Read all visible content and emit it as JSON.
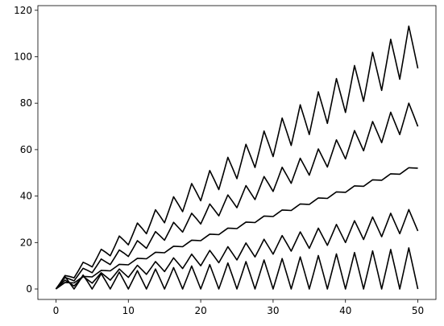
{
  "chart_data": {
    "type": "line",
    "x": [
      0,
      0.625,
      1.25,
      1.875,
      2.5,
      3.125,
      3.75,
      4.375,
      5,
      5.625,
      6.25,
      6.875,
      7.5,
      8.125,
      8.75,
      9.375,
      10,
      10.625,
      11.25,
      11.875,
      12.5,
      13.125,
      13.75,
      14.375,
      15,
      15.625,
      16.25,
      16.875,
      17.5,
      18.125,
      18.75,
      19.375,
      20,
      20.625,
      21.25,
      21.875,
      22.5,
      23.125,
      23.75,
      24.375,
      25,
      25.625,
      26.25,
      26.875,
      27.5,
      28.125,
      28.75,
      29.375,
      30,
      30.625,
      31.25,
      31.875,
      32.5,
      33.125,
      33.75,
      34.375,
      35,
      35.625,
      36.25,
      36.875,
      37.5,
      38.125,
      38.75,
      39.375,
      40,
      40.625,
      41.25,
      41.875,
      42.5,
      43.125,
      43.75,
      44.375,
      45,
      45.625,
      46.25,
      46.875,
      47.5,
      48.125,
      48.75,
      49.375,
      50
    ],
    "series": [
      {
        "color": "#000000",
        "values": [
          0,
          2.6,
          5.3,
          2.7,
          0,
          2.9,
          6.0,
          3.1,
          0,
          3.2,
          6.6,
          3.4,
          0,
          3.6,
          7.3,
          3.7,
          0,
          3.9,
          7.9,
          4.0,
          0,
          4.2,
          8.6,
          4.4,
          0,
          4.5,
          9.2,
          4.7,
          0,
          4.9,
          9.9,
          5.0,
          0,
          5.2,
          10.5,
          5.3,
          0,
          5.5,
          11.2,
          5.7,
          0,
          5.8,
          11.8,
          6.0,
          0,
          6.2,
          12.5,
          6.3,
          0,
          6.5,
          13.1,
          6.6,
          0,
          6.8,
          13.8,
          7.0,
          0,
          7.1,
          14.4,
          7.3,
          0,
          7.5,
          15.1,
          7.6,
          0,
          7.8,
          15.7,
          7.9,
          0,
          8.1,
          16.4,
          8.3,
          0,
          8.4,
          17.0,
          8.6,
          0,
          8.8,
          17.7,
          8.9,
          0
        ]
      },
      {
        "color": "#000000",
        "values": [
          0,
          1.9,
          3.8,
          2.6,
          1.3,
          3.3,
          5.4,
          4.0,
          2.5,
          4.7,
          7.0,
          5.4,
          3.8,
          6.1,
          8.6,
          6.8,
          5.0,
          7.6,
          10.2,
          8.3,
          6.3,
          9.0,
          11.8,
          9.7,
          7.5,
          10.4,
          13.4,
          11.1,
          8.8,
          11.8,
          15.0,
          12.5,
          10.0,
          13.3,
          16.6,
          14.0,
          11.3,
          14.7,
          18.2,
          15.4,
          12.5,
          16.1,
          19.8,
          16.8,
          13.8,
          17.5,
          21.4,
          18.2,
          15.0,
          19.0,
          23.0,
          19.7,
          16.3,
          20.4,
          24.6,
          21.1,
          17.5,
          21.8,
          26.2,
          22.5,
          18.8,
          23.2,
          27.8,
          23.9,
          20.0,
          24.7,
          29.4,
          25.4,
          21.3,
          26.1,
          31.0,
          26.8,
          22.5,
          27.5,
          32.6,
          28.2,
          23.8,
          28.9,
          34.2,
          29.6,
          25.0
        ]
      },
      {
        "color": "#000000",
        "values": [
          0,
          1.4,
          2.8,
          2.7,
          2.6,
          4.0,
          5.4,
          5.3,
          5.2,
          6.6,
          8.0,
          7.9,
          7.8,
          9.2,
          10.6,
          10.5,
          10.4,
          11.8,
          13.2,
          13.1,
          13.0,
          14.4,
          15.8,
          15.7,
          15.6,
          17.0,
          18.4,
          18.3,
          18.2,
          19.6,
          21.0,
          20.9,
          20.8,
          22.2,
          23.6,
          23.5,
          23.4,
          24.8,
          26.2,
          26.1,
          26.0,
          27.4,
          28.8,
          28.7,
          28.6,
          30.0,
          31.4,
          31.3,
          31.2,
          32.6,
          34.0,
          33.9,
          33.8,
          35.2,
          36.6,
          36.5,
          36.4,
          37.8,
          39.2,
          39.1,
          39.0,
          40.4,
          41.8,
          41.7,
          41.6,
          43.0,
          44.4,
          44.3,
          44.2,
          45.6,
          47.0,
          46.9,
          46.8,
          48.2,
          49.6,
          49.5,
          49.4,
          50.8,
          52.2,
          52.1,
          52.0
        ]
      },
      {
        "color": "#000000",
        "values": [
          0,
          2.4,
          5.0,
          4.3,
          3.5,
          6.2,
          8.9,
          8.0,
          7.0,
          9.9,
          12.9,
          11.7,
          10.5,
          13.6,
          16.8,
          15.5,
          14.0,
          17.3,
          20.8,
          19.2,
          17.5,
          21.1,
          24.7,
          22.9,
          21.0,
          24.8,
          28.7,
          26.6,
          24.5,
          28.5,
          32.6,
          30.4,
          28.0,
          32.2,
          36.6,
          34.1,
          31.5,
          36.0,
          40.5,
          37.8,
          35.0,
          39.7,
          44.5,
          41.5,
          38.5,
          43.4,
          48.4,
          45.3,
          42.0,
          47.1,
          52.4,
          49.0,
          45.5,
          50.9,
          56.3,
          52.7,
          49.0,
          54.6,
          60.3,
          56.4,
          52.5,
          58.3,
          64.2,
          60.2,
          56.0,
          62.0,
          68.2,
          63.9,
          59.5,
          65.8,
          72.1,
          67.6,
          63.0,
          69.5,
          76.1,
          71.3,
          66.5,
          73.2,
          80.0,
          75.1,
          70.0
        ]
      },
      {
        "color": "#000000",
        "values": [
          0,
          2.8,
          5.8,
          5.4,
          4.8,
          8.0,
          11.5,
          10.6,
          9.5,
          13.2,
          17.1,
          15.8,
          14.3,
          18.4,
          22.8,
          21.0,
          19.0,
          23.6,
          28.4,
          26.2,
          23.8,
          28.8,
          34.1,
          31.4,
          28.5,
          34.0,
          39.7,
          36.6,
          33.3,
          39.2,
          45.4,
          41.8,
          38.0,
          44.4,
          51.0,
          47.0,
          42.8,
          49.6,
          56.7,
          52.2,
          47.5,
          54.8,
          62.3,
          57.4,
          52.3,
          60.0,
          68.0,
          62.6,
          57.0,
          65.2,
          73.6,
          67.8,
          61.8,
          70.4,
          79.3,
          73.0,
          66.5,
          75.6,
          84.9,
          78.2,
          71.3,
          80.8,
          90.6,
          83.4,
          76.0,
          86.0,
          96.2,
          88.6,
          80.8,
          91.2,
          101.9,
          93.8,
          85.5,
          96.4,
          107.5,
          99.0,
          90.3,
          101.6,
          113.2,
          104.2,
          95.0
        ]
      }
    ],
    "xlim": [
      -2.5,
      52.5
    ],
    "xticks": [
      0,
      10,
      20,
      30,
      40,
      50
    ],
    "ylim": [
      -4.5,
      122
    ],
    "yticks": [
      0,
      20,
      40,
      60,
      80,
      100,
      120
    ],
    "grid": false
  }
}
